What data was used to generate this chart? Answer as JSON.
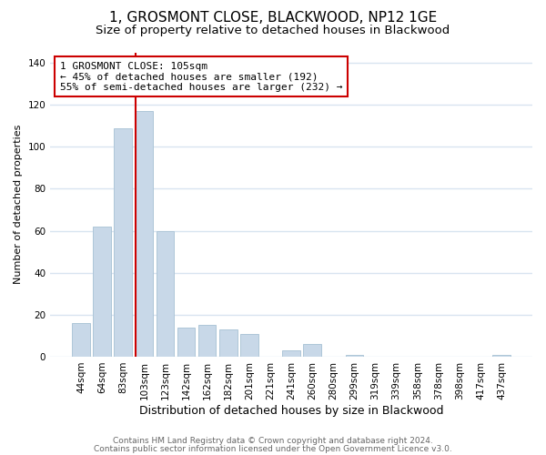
{
  "title": "1, GROSMONT CLOSE, BLACKWOOD, NP12 1GE",
  "subtitle": "Size of property relative to detached houses in Blackwood",
  "xlabel": "Distribution of detached houses by size in Blackwood",
  "ylabel": "Number of detached properties",
  "bar_labels": [
    "44sqm",
    "64sqm",
    "83sqm",
    "103sqm",
    "123sqm",
    "142sqm",
    "162sqm",
    "182sqm",
    "201sqm",
    "221sqm",
    "241sqm",
    "260sqm",
    "280sqm",
    "299sqm",
    "319sqm",
    "339sqm",
    "358sqm",
    "378sqm",
    "398sqm",
    "417sqm",
    "437sqm"
  ],
  "bar_values": [
    16,
    62,
    109,
    117,
    60,
    14,
    15,
    13,
    11,
    0,
    3,
    6,
    0,
    1,
    0,
    0,
    0,
    0,
    0,
    0,
    1
  ],
  "bar_color": "#c8d8e8",
  "bar_edge_color": "#aec6d8",
  "vline_x_index": 3,
  "vline_color": "#cc0000",
  "annotation_text": "1 GROSMONT CLOSE: 105sqm\n← 45% of detached houses are smaller (192)\n55% of semi-detached houses are larger (232) →",
  "annotation_box_edgecolor": "#cc0000",
  "annotation_box_facecolor": "#ffffff",
  "ylim": [
    0,
    145
  ],
  "yticks": [
    0,
    20,
    40,
    60,
    80,
    100,
    120,
    140
  ],
  "footer_line1": "Contains HM Land Registry data © Crown copyright and database right 2024.",
  "footer_line2": "Contains public sector information licensed under the Open Government Licence v3.0.",
  "title_fontsize": 11,
  "subtitle_fontsize": 9.5,
  "xlabel_fontsize": 9,
  "ylabel_fontsize": 8,
  "tick_fontsize": 7.5,
  "annotation_fontsize": 8,
  "footer_fontsize": 6.5,
  "background_color": "#ffffff",
  "grid_color": "#d8e4f0"
}
